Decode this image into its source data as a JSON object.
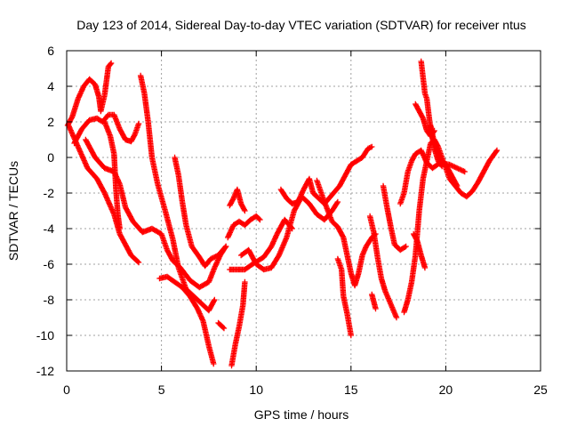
{
  "chart_data": {
    "type": "scatter",
    "title": "Day 123 of 2014, Sidereal Day-to-day VTEC variation (SDTVAR) for receiver ntus",
    "xlabel": "GPS time / hours",
    "ylabel": "SDTVAR / TECUs",
    "xlim": [
      0,
      25
    ],
    "ylim": [
      -12,
      6
    ],
    "xticks": [
      "0",
      "5",
      "10",
      "15",
      "20",
      "25"
    ],
    "yticks": [
      "-12",
      "-10",
      "-8",
      "-6",
      "-4",
      "-2",
      "0",
      "2",
      "4",
      "6"
    ],
    "grid": true,
    "marker": "plus",
    "color": "#ff0000",
    "series": [
      {
        "points": [
          [
            0.05,
            1.8
          ],
          [
            0.3,
            2.3
          ],
          [
            0.6,
            3.3
          ],
          [
            0.9,
            4.0
          ],
          [
            1.2,
            4.4
          ],
          [
            1.5,
            4.1
          ],
          [
            1.7,
            3.4
          ],
          [
            1.8,
            2.6
          ],
          [
            2.0,
            3.5
          ],
          [
            2.2,
            5.1
          ],
          [
            2.35,
            5.3
          ]
        ]
      },
      {
        "points": [
          [
            0.4,
            0.8
          ],
          [
            0.8,
            1.6
          ],
          [
            1.2,
            2.1
          ],
          [
            1.6,
            2.2
          ],
          [
            1.9,
            2.0
          ],
          [
            2.2,
            2.4
          ],
          [
            2.5,
            2.4
          ],
          [
            2.8,
            1.6
          ],
          [
            3.1,
            1.0
          ],
          [
            3.4,
            0.9
          ],
          [
            3.6,
            1.3
          ],
          [
            3.8,
            1.9
          ]
        ]
      },
      {
        "points": [
          [
            1.0,
            1.0
          ],
          [
            1.5,
            0.0
          ],
          [
            2.0,
            -0.6
          ],
          [
            2.5,
            -0.8
          ],
          [
            2.8,
            -1.5
          ],
          [
            3.1,
            -2.8
          ],
          [
            3.5,
            -3.6
          ],
          [
            4.0,
            -4.2
          ],
          [
            4.5,
            -4.0
          ],
          [
            5.0,
            -4.3
          ],
          [
            5.3,
            -5.2
          ],
          [
            5.6,
            -5.8
          ],
          [
            6.0,
            -6.2
          ],
          [
            6.5,
            -6.9
          ],
          [
            7.0,
            -7.3
          ],
          [
            7.5,
            -7.0
          ],
          [
            7.8,
            -6.2
          ],
          [
            8.1,
            -5.5
          ],
          [
            8.4,
            -5.0
          ]
        ]
      },
      {
        "points": [
          [
            0.1,
            1.8
          ],
          [
            0.6,
            0.6
          ],
          [
            1.1,
            -0.6
          ],
          [
            1.6,
            -1.2
          ],
          [
            2.0,
            -2.0
          ],
          [
            2.5,
            -3.2
          ],
          [
            2.8,
            -4.3
          ],
          [
            3.0,
            -4.7
          ],
          [
            3.4,
            -5.5
          ],
          [
            3.8,
            -5.9
          ]
        ]
      },
      {
        "points": [
          [
            2.0,
            2.0
          ],
          [
            2.3,
            1.2
          ],
          [
            2.5,
            0.2
          ],
          [
            2.6,
            -1.8
          ],
          [
            2.7,
            -3.2
          ],
          [
            2.8,
            -4.0
          ]
        ]
      },
      {
        "points": [
          [
            3.9,
            4.6
          ],
          [
            4.1,
            3.6
          ],
          [
            4.3,
            2.0
          ],
          [
            4.5,
            0.0
          ],
          [
            4.8,
            -1.5
          ],
          [
            5.2,
            -3.0
          ],
          [
            5.6,
            -4.6
          ],
          [
            5.9,
            -6.2
          ],
          [
            6.3,
            -7.4
          ],
          [
            6.8,
            -7.9
          ],
          [
            7.2,
            -8.3
          ],
          [
            7.5,
            -8.6
          ],
          [
            7.8,
            -8.0
          ]
        ]
      },
      {
        "points": [
          [
            5.7,
            0.0
          ],
          [
            5.9,
            -1.0
          ],
          [
            6.1,
            -2.5
          ],
          [
            6.3,
            -3.8
          ],
          [
            6.6,
            -5.0
          ],
          [
            7.0,
            -5.6
          ],
          [
            7.3,
            -6.1
          ],
          [
            7.6,
            -5.7
          ],
          [
            8.0,
            -5.5
          ],
          [
            8.4,
            -5.0
          ]
        ]
      },
      {
        "points": [
          [
            4.9,
            -6.8
          ],
          [
            5.3,
            -6.7
          ],
          [
            5.7,
            -7.0
          ],
          [
            6.1,
            -7.3
          ],
          [
            6.5,
            -7.8
          ],
          [
            6.9,
            -8.5
          ],
          [
            7.2,
            -9.2
          ],
          [
            7.5,
            -10.6
          ],
          [
            7.75,
            -11.6
          ]
        ]
      },
      {
        "points": [
          [
            8.0,
            -9.3
          ],
          [
            8.3,
            -9.6
          ]
        ]
      },
      {
        "points": [
          [
            8.7,
            -11.7
          ],
          [
            8.9,
            -10.5
          ],
          [
            9.1,
            -9.5
          ],
          [
            9.3,
            -8.3
          ],
          [
            9.4,
            -7.0
          ]
        ]
      },
      {
        "points": [
          [
            8.6,
            -2.7
          ],
          [
            8.8,
            -2.3
          ],
          [
            9.0,
            -1.8
          ],
          [
            9.2,
            -2.6
          ],
          [
            9.4,
            -3.0
          ]
        ]
      },
      {
        "points": [
          [
            8.5,
            -4.5
          ],
          [
            8.8,
            -3.8
          ],
          [
            9.1,
            -3.6
          ],
          [
            9.4,
            -3.8
          ],
          [
            9.7,
            -3.5
          ],
          [
            10.0,
            -3.3
          ],
          [
            10.2,
            -3.5
          ]
        ]
      },
      {
        "points": [
          [
            8.6,
            -6.3
          ],
          [
            9.0,
            -6.3
          ],
          [
            9.4,
            -6.3
          ],
          [
            9.8,
            -6.0
          ],
          [
            10.1,
            -5.8
          ],
          [
            10.4,
            -5.6
          ],
          [
            10.8,
            -5.0
          ],
          [
            11.1,
            -4.3
          ],
          [
            11.5,
            -3.5
          ],
          [
            11.9,
            -4.0
          ]
        ]
      },
      {
        "points": [
          [
            9.2,
            -5.5
          ],
          [
            9.6,
            -5.2
          ],
          [
            10.0,
            -6.0
          ],
          [
            10.4,
            -6.3
          ],
          [
            10.8,
            -6.2
          ],
          [
            11.2,
            -5.5
          ],
          [
            11.6,
            -4.5
          ],
          [
            12.0,
            -3.0
          ],
          [
            12.4,
            -2.2
          ],
          [
            12.8,
            -2.6
          ],
          [
            13.2,
            -3.2
          ],
          [
            13.6,
            -3.5
          ],
          [
            14.0,
            -3.0
          ],
          [
            14.3,
            -2.5
          ]
        ]
      },
      {
        "points": [
          [
            11.3,
            -1.8
          ],
          [
            11.6,
            -2.3
          ],
          [
            11.9,
            -2.6
          ],
          [
            12.2,
            -2.5
          ],
          [
            12.5,
            -1.8
          ],
          [
            12.8,
            -1.2
          ],
          [
            13.0,
            -2.0
          ],
          [
            13.3,
            -2.3
          ],
          [
            13.6,
            -2.6
          ],
          [
            14.0,
            -2.1
          ],
          [
            14.4,
            -1.6
          ],
          [
            14.7,
            -1.0
          ],
          [
            15.0,
            -0.4
          ],
          [
            15.3,
            -0.2
          ],
          [
            15.6,
            0.0
          ],
          [
            15.9,
            0.5
          ],
          [
            16.1,
            0.6
          ]
        ]
      },
      {
        "points": [
          [
            13.2,
            -1.3
          ],
          [
            13.6,
            -2.5
          ],
          [
            14.0,
            -3.6
          ],
          [
            14.3,
            -3.9
          ],
          [
            14.6,
            -4.5
          ],
          [
            14.8,
            -5.5
          ],
          [
            15.0,
            -6.5
          ],
          [
            15.2,
            -7.2
          ],
          [
            15.4,
            -6.5
          ],
          [
            15.6,
            -5.5
          ],
          [
            15.8,
            -5.0
          ],
          [
            16.1,
            -4.5
          ],
          [
            16.3,
            -4.3
          ]
        ]
      },
      {
        "points": [
          [
            14.3,
            -5.7
          ],
          [
            14.5,
            -6.3
          ],
          [
            14.6,
            -7.8
          ],
          [
            14.8,
            -8.8
          ],
          [
            15.0,
            -10.0
          ]
        ]
      },
      {
        "points": [
          [
            16.0,
            -3.3
          ],
          [
            16.2,
            -4.2
          ],
          [
            16.4,
            -5.6
          ],
          [
            16.6,
            -6.8
          ],
          [
            16.8,
            -7.5
          ],
          [
            17.0,
            -8.0
          ],
          [
            17.2,
            -8.5
          ],
          [
            17.4,
            -9.0
          ]
        ]
      },
      {
        "points": [
          [
            16.1,
            -7.7
          ],
          [
            16.3,
            -8.5
          ]
        ]
      },
      {
        "points": [
          [
            16.7,
            -1.6
          ],
          [
            16.9,
            -2.8
          ],
          [
            17.1,
            -3.9
          ],
          [
            17.3,
            -4.9
          ],
          [
            17.6,
            -5.2
          ],
          [
            17.9,
            -5.0
          ]
        ]
      },
      {
        "points": [
          [
            17.8,
            -8.7
          ],
          [
            18.0,
            -8.0
          ],
          [
            18.2,
            -7.0
          ],
          [
            18.4,
            -5.5
          ],
          [
            18.6,
            -3.0
          ],
          [
            18.8,
            -1.2
          ],
          [
            19.0,
            -0.2
          ],
          [
            19.2,
            0.8
          ],
          [
            19.4,
            1.0
          ],
          [
            19.6,
            0.6
          ],
          [
            19.8,
            0.0
          ],
          [
            20.0,
            -0.6
          ],
          [
            20.2,
            -1.2
          ],
          [
            20.5,
            -1.6
          ],
          [
            20.8,
            -2.0
          ],
          [
            21.1,
            -2.2
          ],
          [
            21.4,
            -1.9
          ],
          [
            21.7,
            -1.4
          ],
          [
            22.0,
            -0.8
          ],
          [
            22.3,
            -0.2
          ],
          [
            22.7,
            0.4
          ]
        ]
      },
      {
        "points": [
          [
            18.4,
            3.0
          ],
          [
            18.6,
            2.6
          ],
          [
            18.8,
            2.2
          ],
          [
            19.0,
            1.5
          ],
          [
            19.2,
            1.2
          ],
          [
            19.4,
            1.5
          ]
        ]
      },
      {
        "points": [
          [
            18.7,
            5.4
          ],
          [
            18.8,
            4.5
          ],
          [
            18.9,
            3.6
          ],
          [
            19.0,
            3.3
          ],
          [
            19.2,
            1.6
          ],
          [
            19.4,
            0.5
          ],
          [
            19.6,
            -0.2
          ],
          [
            19.8,
            -0.5
          ]
        ]
      },
      {
        "points": [
          [
            17.6,
            -2.6
          ],
          [
            17.8,
            -2.0
          ],
          [
            18.0,
            -0.8
          ],
          [
            18.2,
            -0.2
          ],
          [
            18.4,
            0.2
          ],
          [
            18.7,
            0.4
          ],
          [
            19.0,
            -0.3
          ],
          [
            19.3,
            -0.6
          ],
          [
            19.7,
            -0.3
          ],
          [
            20.2,
            -0.4
          ],
          [
            20.6,
            -0.6
          ],
          [
            21.0,
            -0.8
          ]
        ]
      },
      {
        "points": [
          [
            19.2,
            1.8
          ],
          [
            19.4,
            0.8
          ],
          [
            19.6,
            0.2
          ],
          [
            19.8,
            -0.2
          ],
          [
            20.0,
            -0.4
          ],
          [
            20.2,
            -0.8
          ],
          [
            20.4,
            -1.2
          ],
          [
            20.6,
            -1.6
          ]
        ]
      },
      {
        "points": [
          [
            18.3,
            -4.3
          ],
          [
            18.5,
            -4.7
          ],
          [
            18.7,
            -5.5
          ],
          [
            18.9,
            -6.2
          ]
        ]
      }
    ]
  }
}
